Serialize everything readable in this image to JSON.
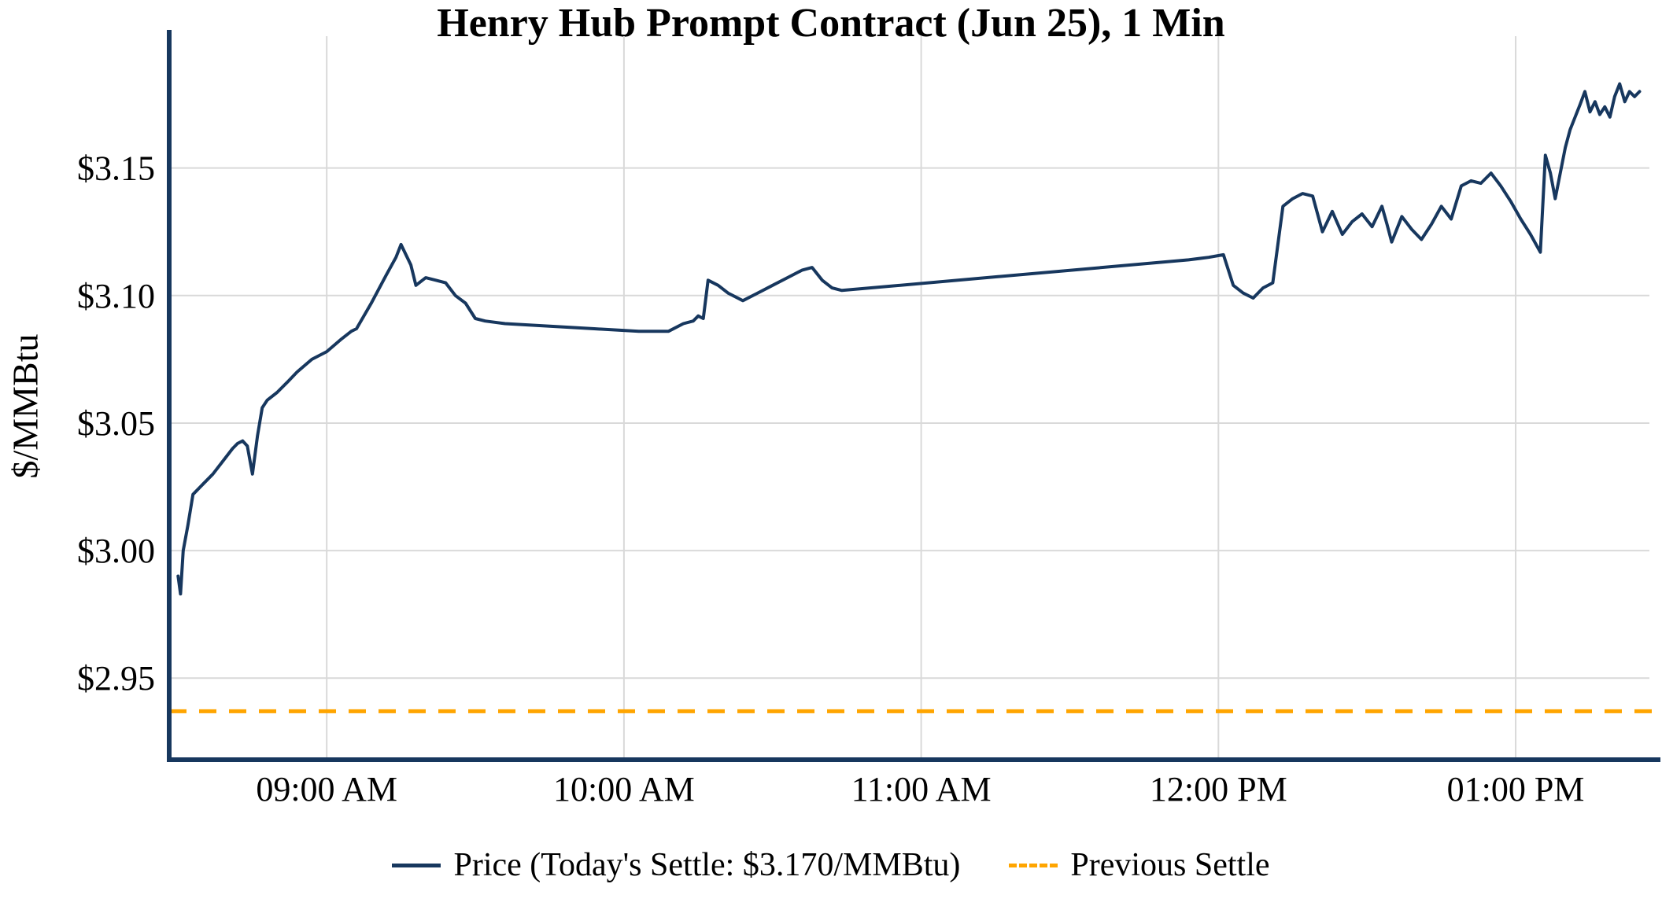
{
  "title": "Henry Hub Prompt Contract (Jun 25), 1 Min",
  "y_axis_label": "$/MMBtu",
  "legend": {
    "price_label": "Price (Today's Settle: $3.170/MMBtu)",
    "settle_label": "Previous Settle"
  },
  "colors": {
    "price_line": "#17375e",
    "settle_line": "#FFA500",
    "grid": "#d9d9d9",
    "axis": "#17375e",
    "text": "#000000"
  },
  "chart_data": {
    "type": "line",
    "title": "Henry Hub Prompt Contract (Jun 25), 1 Min",
    "xlabel": "",
    "ylabel": "$/MMBtu",
    "xlim": [
      8.47,
      13.45
    ],
    "ylim": [
      2.918,
      3.198
    ],
    "grid": true,
    "legend_position": "bottom",
    "todays_settle": 3.17,
    "previous_settle": 2.937,
    "x_ticks": [
      {
        "value": 9,
        "label": "09:00 AM"
      },
      {
        "value": 10,
        "label": "10:00 AM"
      },
      {
        "value": 11,
        "label": "11:00 AM"
      },
      {
        "value": 12,
        "label": "12:00 PM"
      },
      {
        "value": 13,
        "label": "01:00 PM"
      }
    ],
    "y_ticks": [
      {
        "value": 2.95,
        "label": "$2.95"
      },
      {
        "value": 3.0,
        "label": "$3.00"
      },
      {
        "value": 3.05,
        "label": "$3.05"
      },
      {
        "value": 3.1,
        "label": "$3.10"
      },
      {
        "value": 3.15,
        "label": "$3.15"
      }
    ],
    "series": [
      {
        "name": "Price (Today's Settle: $3.170/MMBtu)",
        "points": [
          [
            8.5,
            2.99
          ],
          [
            8.508,
            2.983
          ],
          [
            8.517,
            3.0
          ],
          [
            8.533,
            3.01
          ],
          [
            8.55,
            3.022
          ],
          [
            8.583,
            3.026
          ],
          [
            8.617,
            3.03
          ],
          [
            8.65,
            3.035
          ],
          [
            8.683,
            3.04
          ],
          [
            8.7,
            3.042
          ],
          [
            8.717,
            3.043
          ],
          [
            8.733,
            3.041
          ],
          [
            8.75,
            3.03
          ],
          [
            8.767,
            3.045
          ],
          [
            8.783,
            3.056
          ],
          [
            8.8,
            3.059
          ],
          [
            8.833,
            3.062
          ],
          [
            8.867,
            3.066
          ],
          [
            8.9,
            3.07
          ],
          [
            8.95,
            3.075
          ],
          [
            9.0,
            3.078
          ],
          [
            9.05,
            3.083
          ],
          [
            9.083,
            3.086
          ],
          [
            9.1,
            3.087
          ],
          [
            9.15,
            3.097
          ],
          [
            9.2,
            3.108
          ],
          [
            9.233,
            3.115
          ],
          [
            9.25,
            3.12
          ],
          [
            9.283,
            3.112
          ],
          [
            9.3,
            3.104
          ],
          [
            9.333,
            3.107
          ],
          [
            9.367,
            3.106
          ],
          [
            9.4,
            3.105
          ],
          [
            9.433,
            3.1
          ],
          [
            9.467,
            3.097
          ],
          [
            9.5,
            3.091
          ],
          [
            9.533,
            3.09
          ],
          [
            9.6,
            3.089
          ],
          [
            9.75,
            3.088
          ],
          [
            9.9,
            3.087
          ],
          [
            10.05,
            3.086
          ],
          [
            10.15,
            3.086
          ],
          [
            10.2,
            3.089
          ],
          [
            10.233,
            3.09
          ],
          [
            10.25,
            3.092
          ],
          [
            10.267,
            3.091
          ],
          [
            10.283,
            3.106
          ],
          [
            10.317,
            3.104
          ],
          [
            10.35,
            3.101
          ],
          [
            10.4,
            3.098
          ],
          [
            10.45,
            3.101
          ],
          [
            10.5,
            3.104
          ],
          [
            10.55,
            3.107
          ],
          [
            10.6,
            3.11
          ],
          [
            10.633,
            3.111
          ],
          [
            10.667,
            3.106
          ],
          [
            10.7,
            3.103
          ],
          [
            10.733,
            3.102
          ],
          [
            11.9,
            3.114
          ],
          [
            11.967,
            3.115
          ],
          [
            12.017,
            3.116
          ],
          [
            12.05,
            3.104
          ],
          [
            12.083,
            3.101
          ],
          [
            12.117,
            3.099
          ],
          [
            12.15,
            3.103
          ],
          [
            12.183,
            3.105
          ],
          [
            12.217,
            3.135
          ],
          [
            12.25,
            3.138
          ],
          [
            12.283,
            3.14
          ],
          [
            12.317,
            3.139
          ],
          [
            12.35,
            3.125
          ],
          [
            12.383,
            3.133
          ],
          [
            12.417,
            3.124
          ],
          [
            12.45,
            3.129
          ],
          [
            12.483,
            3.132
          ],
          [
            12.517,
            3.127
          ],
          [
            12.55,
            3.135
          ],
          [
            12.567,
            3.128
          ],
          [
            12.583,
            3.121
          ],
          [
            12.617,
            3.131
          ],
          [
            12.65,
            3.126
          ],
          [
            12.683,
            3.122
          ],
          [
            12.717,
            3.128
          ],
          [
            12.75,
            3.135
          ],
          [
            12.783,
            3.13
          ],
          [
            12.817,
            3.143
          ],
          [
            12.85,
            3.145
          ],
          [
            12.883,
            3.144
          ],
          [
            12.917,
            3.148
          ],
          [
            12.95,
            3.143
          ],
          [
            12.983,
            3.137
          ],
          [
            13.017,
            3.13
          ],
          [
            13.05,
            3.124
          ],
          [
            13.083,
            3.117
          ],
          [
            13.1,
            3.155
          ],
          [
            13.117,
            3.148
          ],
          [
            13.133,
            3.138
          ],
          [
            13.167,
            3.158
          ],
          [
            13.183,
            3.165
          ],
          [
            13.2,
            3.17
          ],
          [
            13.217,
            3.175
          ],
          [
            13.233,
            3.18
          ],
          [
            13.25,
            3.172
          ],
          [
            13.267,
            3.176
          ],
          [
            13.283,
            3.171
          ],
          [
            13.3,
            3.174
          ],
          [
            13.317,
            3.17
          ],
          [
            13.333,
            3.178
          ],
          [
            13.35,
            3.183
          ],
          [
            13.367,
            3.176
          ],
          [
            13.383,
            3.18
          ],
          [
            13.4,
            3.178
          ],
          [
            13.417,
            3.18
          ]
        ]
      },
      {
        "name": "Previous Settle",
        "style": "dashed",
        "value": 2.937
      }
    ]
  }
}
